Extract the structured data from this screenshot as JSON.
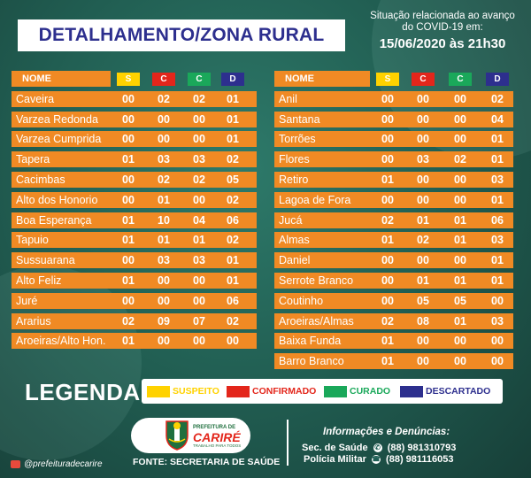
{
  "title": "DETALHAMENTO/ZONA RURAL",
  "status": {
    "line1": "Situação relacionada ao avanço",
    "line2": "do COVID-19 em:",
    "date": "15/06/2020 às 21h30"
  },
  "headers": {
    "name": "NOME",
    "s": "S",
    "c": "C",
    "cu": "C",
    "d": "D"
  },
  "colors": {
    "orange": "#f08a24",
    "suspeito": "#ffd200",
    "confirmado": "#e3261b",
    "curado": "#1aa85a",
    "descartado": "#2d2f8e",
    "background": "#215e52"
  },
  "left_rows": [
    {
      "name": "Caveira",
      "s": "00",
      "c": "02",
      "cu": "02",
      "d": "01"
    },
    {
      "name": "Varzea Redonda",
      "s": "00",
      "c": "00",
      "cu": "00",
      "d": "01"
    },
    {
      "name": "Varzea Cumprida",
      "s": "00",
      "c": "00",
      "cu": "00",
      "d": "01"
    },
    {
      "name": "Tapera",
      "s": "01",
      "c": "03",
      "cu": "03",
      "d": "02"
    },
    {
      "name": "Cacimbas",
      "s": "00",
      "c": "02",
      "cu": "02",
      "d": "05"
    },
    {
      "name": "Alto dos Honorio",
      "s": "00",
      "c": "01",
      "cu": "00",
      "d": "02"
    },
    {
      "name": "Boa Esperança",
      "s": "01",
      "c": "10",
      "cu": "04",
      "d": "06"
    },
    {
      "name": "Tapuio",
      "s": "01",
      "c": "01",
      "cu": "01",
      "d": "02"
    },
    {
      "name": "Sussuarana",
      "s": "00",
      "c": "03",
      "cu": "03",
      "d": "01"
    },
    {
      "name": "Alto Feliz",
      "s": "01",
      "c": "00",
      "cu": "00",
      "d": "01"
    },
    {
      "name": "Juré",
      "s": "00",
      "c": "00",
      "cu": "00",
      "d": "06"
    },
    {
      "name": "Ararius",
      "s": "02",
      "c": "09",
      "cu": "07",
      "d": "02"
    },
    {
      "name": "Aroeiras/Alto Hon.",
      "s": "01",
      "c": "00",
      "cu": "00",
      "d": "00"
    }
  ],
  "right_rows": [
    {
      "name": "Anil",
      "s": "00",
      "c": "00",
      "cu": "00",
      "d": "02"
    },
    {
      "name": "Santana",
      "s": "00",
      "c": "00",
      "cu": "00",
      "d": "04"
    },
    {
      "name": "Torrões",
      "s": "00",
      "c": "00",
      "cu": "00",
      "d": "01"
    },
    {
      "name": "Flores",
      "s": "00",
      "c": "03",
      "cu": "02",
      "d": "01"
    },
    {
      "name": "Retiro",
      "s": "01",
      "c": "00",
      "cu": "00",
      "d": "03"
    },
    {
      "name": "Lagoa de Fora",
      "s": "00",
      "c": "00",
      "cu": "00",
      "d": "01"
    },
    {
      "name": "Jucá",
      "s": "02",
      "c": "01",
      "cu": "01",
      "d": "06"
    },
    {
      "name": "Almas",
      "s": "01",
      "c": "02",
      "cu": "01",
      "d": "03"
    },
    {
      "name": "Daniel",
      "s": "00",
      "c": "00",
      "cu": "00",
      "d": "01"
    },
    {
      "name": "Serrote Branco",
      "s": "00",
      "c": "01",
      "cu": "01",
      "d": "01"
    },
    {
      "name": "Coutinho",
      "s": "00",
      "c": "05",
      "cu": "05",
      "d": "00"
    },
    {
      "name": "Aroeiras/Almas",
      "s": "02",
      "c": "08",
      "cu": "01",
      "d": "03"
    },
    {
      "name": "Baixa Funda",
      "s": "01",
      "c": "00",
      "cu": "00",
      "d": "00"
    },
    {
      "name": "Barro Branco",
      "s": "01",
      "c": "00",
      "cu": "00",
      "d": "00"
    }
  ],
  "legend": {
    "title": "LEGENDA",
    "suspeito": "SUSPEITO",
    "confirmado": "CONFIRMADO",
    "curado": "CURADO",
    "descartado": "DESCARTADO"
  },
  "logo": {
    "prefeitura": "PREFEITURA DE",
    "city": "CARIRÉ",
    "tagline": "TRABALHO PARA TODOS"
  },
  "fonte": "FONTE: SECRETARIA DE SAÚDE",
  "info": {
    "title": "Informações e Denúncias:",
    "sec_label": "Sec. de Saúde",
    "sec_phone": "(88) 981310793",
    "pm_label": "Polícia Militar",
    "pm_phone": "(88) 981116053",
    "whatsapp_icon": "whatsapp-icon",
    "phone_icon": "phone-icon"
  },
  "social": "@prefeituradecarire"
}
